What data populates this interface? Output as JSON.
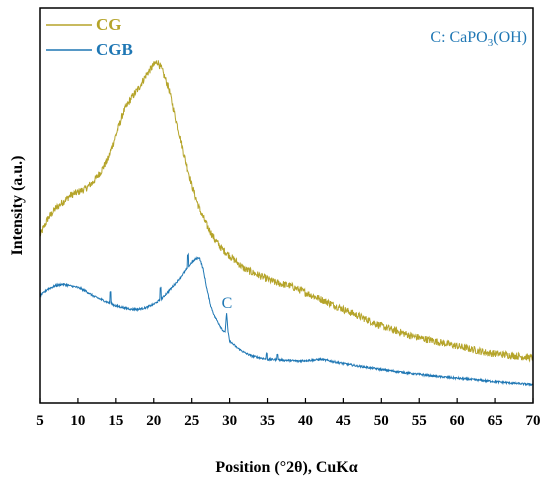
{
  "chart_data": {
    "type": "line",
    "xlabel": "Position (°2θ), CuKα",
    "ylabel": "Intensity (a.u.)",
    "xlim": [
      5,
      70
    ],
    "xticks": [
      5,
      10,
      15,
      20,
      25,
      30,
      35,
      40,
      45,
      50,
      55,
      60,
      65,
      70
    ],
    "y_ticks_shown": false,
    "legend": {
      "placement": "top-left"
    },
    "annotations": [
      {
        "text": "C",
        "x": 29.6,
        "color": "#1f77b4"
      },
      {
        "text_main": "C: CaPO",
        "text_sub": "3",
        "text_tail": "(OH)",
        "placement": "top-right",
        "color": "#1f77b4"
      }
    ],
    "series": [
      {
        "name": "CG",
        "color": "#b5a42a",
        "x": [
          5,
          6,
          7,
          8,
          9,
          10,
          11,
          12,
          13,
          14,
          15,
          16,
          17,
          18,
          19,
          20,
          20.5,
          21,
          22,
          23,
          24,
          25,
          26,
          27,
          28,
          29,
          30,
          31,
          32,
          33,
          34,
          35,
          36,
          37,
          38,
          39,
          40,
          41,
          42,
          43,
          44,
          45,
          46,
          47,
          48,
          49,
          50,
          52,
          54,
          56,
          58,
          60,
          62,
          64,
          66,
          68,
          70
        ],
        "values": [
          0.5,
          0.55,
          0.58,
          0.6,
          0.62,
          0.63,
          0.64,
          0.66,
          0.69,
          0.73,
          0.8,
          0.87,
          0.91,
          0.94,
          0.98,
          1.01,
          1.02,
          1.0,
          0.94,
          0.84,
          0.74,
          0.65,
          0.58,
          0.53,
          0.49,
          0.46,
          0.44,
          0.42,
          0.4,
          0.39,
          0.38,
          0.37,
          0.36,
          0.355,
          0.35,
          0.34,
          0.33,
          0.32,
          0.31,
          0.3,
          0.29,
          0.28,
          0.27,
          0.26,
          0.25,
          0.24,
          0.23,
          0.215,
          0.2,
          0.19,
          0.18,
          0.17,
          0.16,
          0.15,
          0.145,
          0.14,
          0.135
        ]
      },
      {
        "name": "CGB",
        "color": "#1f77b4",
        "x": [
          5,
          6,
          7,
          8,
          9,
          10,
          11,
          12,
          13,
          14,
          15,
          16,
          17,
          18,
          19,
          20,
          21,
          22,
          23,
          24,
          25,
          25.5,
          26,
          26.5,
          27,
          27.5,
          28,
          28.5,
          29,
          29.4,
          29.6,
          29.8,
          30,
          31,
          32,
          33,
          34,
          35,
          36,
          37,
          38,
          39,
          40,
          41,
          42,
          43,
          44,
          45,
          46,
          47,
          48,
          50,
          52,
          54,
          56,
          58,
          60,
          62,
          64,
          66,
          68,
          70
        ],
        "values": [
          0.32,
          0.34,
          0.35,
          0.355,
          0.35,
          0.345,
          0.335,
          0.32,
          0.31,
          0.3,
          0.29,
          0.285,
          0.28,
          0.28,
          0.285,
          0.295,
          0.31,
          0.335,
          0.36,
          0.39,
          0.42,
          0.43,
          0.435,
          0.4,
          0.34,
          0.29,
          0.26,
          0.24,
          0.22,
          0.21,
          0.27,
          0.21,
          0.185,
          0.165,
          0.15,
          0.14,
          0.135,
          0.13,
          0.13,
          0.128,
          0.127,
          0.125,
          0.127,
          0.128,
          0.13,
          0.127,
          0.122,
          0.118,
          0.114,
          0.11,
          0.107,
          0.1,
          0.094,
          0.088,
          0.083,
          0.078,
          0.074,
          0.07,
          0.066,
          0.062,
          0.058,
          0.055
        ]
      }
    ]
  }
}
